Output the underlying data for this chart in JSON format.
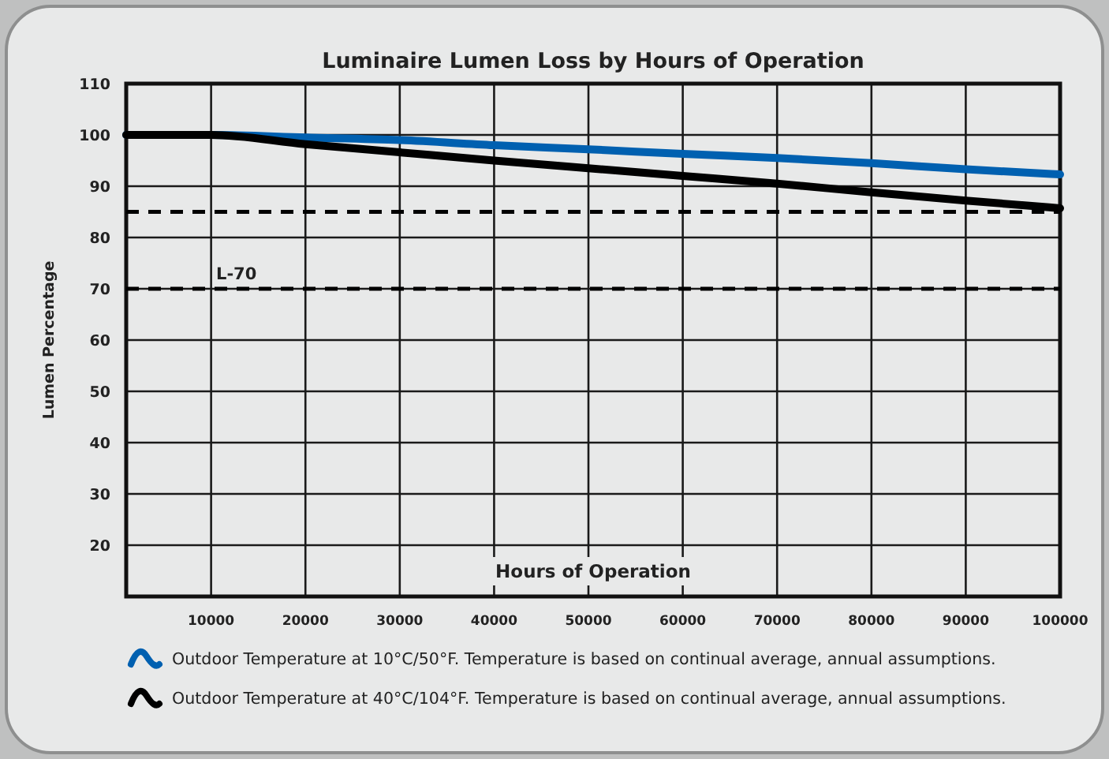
{
  "chart_data": {
    "type": "line",
    "title": "Luminaire Lumen Loss by Hours of Operation",
    "xlabel": "Hours of Operation",
    "ylabel": "Lumen Percentage",
    "x": [
      1000,
      10000,
      20000,
      30000,
      40000,
      50000,
      60000,
      70000,
      80000,
      90000,
      100000
    ],
    "series": [
      {
        "name": "Outdoor Temperature at 10°C/50°F. Temperature is based on continual average, annual assumptions.",
        "color": "#0060b0",
        "values": [
          100,
          100,
          99.5,
          99,
          98,
          97.2,
          96.3,
          95.5,
          94.5,
          93.3,
          92.3
        ]
      },
      {
        "name": "Outdoor Temperature at 40°C/104°F. Temperature is based on continual average, annual assumptions.",
        "color": "#000000",
        "values": [
          100,
          100,
          98.2,
          96.6,
          95,
          93.5,
          92,
          90.5,
          88.8,
          87.2,
          85.7
        ]
      }
    ],
    "xlim": [
      1000,
      100000
    ],
    "xticks": [
      10000,
      20000,
      30000,
      40000,
      50000,
      60000,
      70000,
      80000,
      90000,
      100000
    ],
    "ylim": [
      10,
      110
    ],
    "yticks": [
      20,
      30,
      40,
      50,
      60,
      70,
      80,
      90,
      100,
      110
    ],
    "ref_lines": [
      {
        "axis": "y",
        "value": 85,
        "label": null,
        "line_style": "dashed"
      },
      {
        "axis": "y",
        "value": 70,
        "label": "L-70",
        "line_style": "dashed"
      }
    ],
    "grid": true,
    "legend": "bottom",
    "line_style": "solid"
  }
}
